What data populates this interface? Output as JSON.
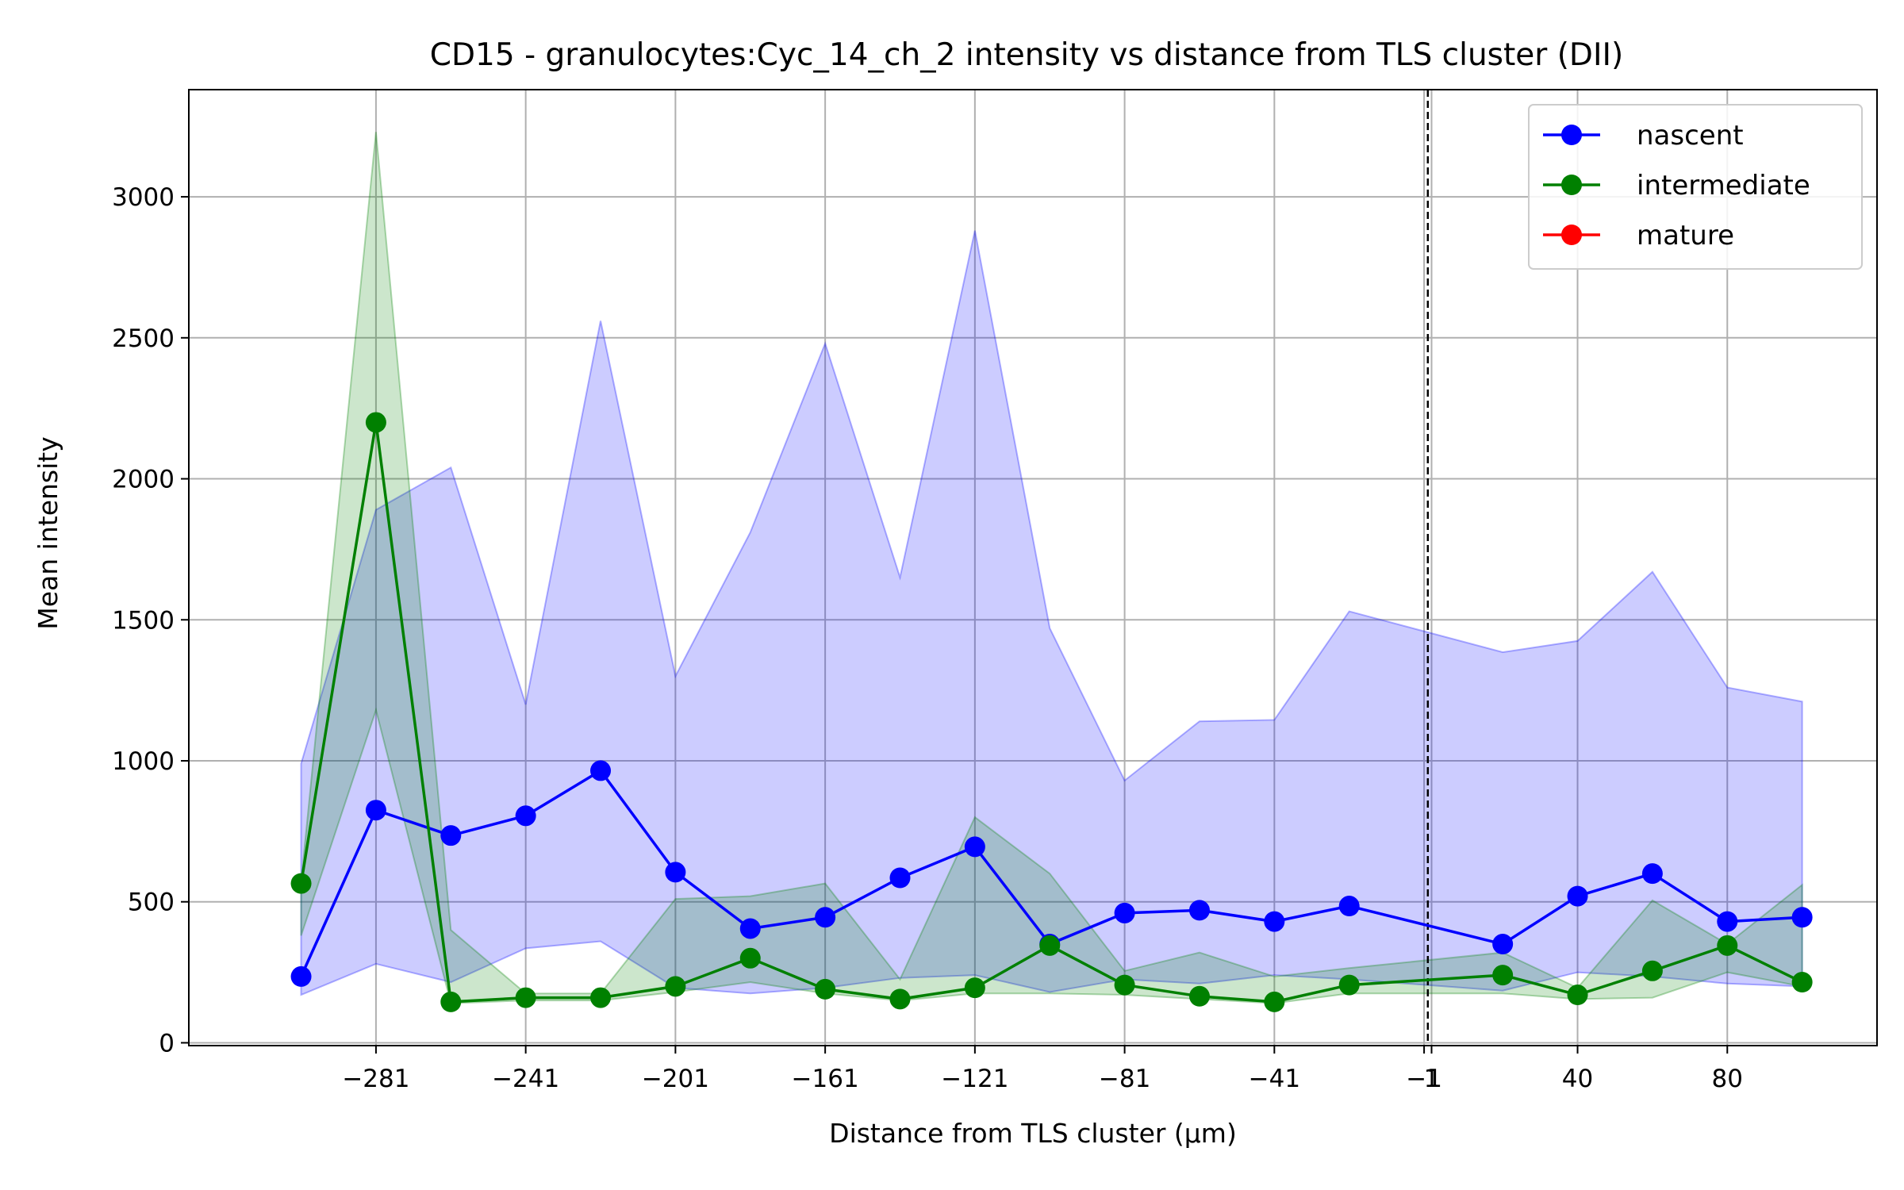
{
  "chart_data": {
    "type": "line",
    "title": "CD15 - granulocytes:Cyc_14_ch_2 intensity vs distance from TLS cluster (DII)",
    "xlabel": "Distance from TLS cluster (µm)",
    "ylabel": "Mean intensity",
    "xlim": [
      -331,
      120
    ],
    "ylim": [
      -10,
      3380
    ],
    "x_ticks": [
      -281,
      -241,
      -201,
      -161,
      -121,
      -81,
      -41,
      -1,
      1,
      40,
      80
    ],
    "x_tick_labels": [
      "−281",
      "−241",
      "−201",
      "−161",
      "−121",
      "−81",
      "−41",
      "−1",
      "1",
      "40",
      "80"
    ],
    "y_ticks": [
      0,
      500,
      1000,
      1500,
      2000,
      2500,
      3000
    ],
    "y_tick_labels": [
      "0",
      "500",
      "1000",
      "1500",
      "2000",
      "2500",
      "3000"
    ],
    "grid": true,
    "legend_position": "top-right",
    "reference_line_x": 0,
    "series": [
      {
        "name": "nascent",
        "color": "#0000ff",
        "band_color": "#0000ff",
        "band_opacity": 0.2,
        "points": [
          {
            "x": -301,
            "y": 235,
            "lo": 170,
            "hi": 990
          },
          {
            "x": -281,
            "y": 825,
            "lo": 280,
            "hi": 1890
          },
          {
            "x": -261,
            "y": 735,
            "lo": 215,
            "hi": 2040
          },
          {
            "x": -241,
            "y": 805,
            "lo": 335,
            "hi": 1200
          },
          {
            "x": -221,
            "y": 965,
            "lo": 360,
            "hi": 2560
          },
          {
            "x": -201,
            "y": 605,
            "lo": 195,
            "hi": 1300
          },
          {
            "x": -181,
            "y": 405,
            "lo": 175,
            "hi": 1810
          },
          {
            "x": -161,
            "y": 445,
            "lo": 195,
            "hi": 2480
          },
          {
            "x": -141,
            "y": 585,
            "lo": 230,
            "hi": 1650
          },
          {
            "x": -121,
            "y": 695,
            "lo": 240,
            "hi": 2880
          },
          {
            "x": -101,
            "y": 350,
            "lo": 180,
            "hi": 1470
          },
          {
            "x": -81,
            "y": 460,
            "lo": 225,
            "hi": 930
          },
          {
            "x": -61,
            "y": 470,
            "lo": 210,
            "hi": 1140
          },
          {
            "x": -41,
            "y": 430,
            "lo": 240,
            "hi": 1145
          },
          {
            "x": -21,
            "y": 485,
            "lo": 225,
            "hi": 1530
          },
          {
            "x": 20,
            "y": 350,
            "lo": 185,
            "hi": 1385
          },
          {
            "x": 40,
            "y": 520,
            "lo": 250,
            "hi": 1425
          },
          {
            "x": 60,
            "y": 600,
            "lo": 235,
            "hi": 1670
          },
          {
            "x": 80,
            "y": 430,
            "lo": 210,
            "hi": 1260
          },
          {
            "x": 100,
            "y": 445,
            "lo": 200,
            "hi": 1210
          }
        ]
      },
      {
        "name": "intermediate",
        "color": "#008000",
        "band_color": "#008000",
        "band_opacity": 0.2,
        "points": [
          {
            "x": -301,
            "y": 565,
            "lo": 380,
            "hi": 570
          },
          {
            "x": -281,
            "y": 2200,
            "lo": 1180,
            "hi": 3230
          },
          {
            "x": -261,
            "y": 145,
            "lo": 140,
            "hi": 400
          },
          {
            "x": -241,
            "y": 160,
            "lo": 150,
            "hi": 175
          },
          {
            "x": -221,
            "y": 160,
            "lo": 150,
            "hi": 175
          },
          {
            "x": -201,
            "y": 200,
            "lo": 180,
            "hi": 510
          },
          {
            "x": -181,
            "y": 300,
            "lo": 215,
            "hi": 520
          },
          {
            "x": -161,
            "y": 190,
            "lo": 175,
            "hi": 565
          },
          {
            "x": -141,
            "y": 155,
            "lo": 150,
            "hi": 225
          },
          {
            "x": -121,
            "y": 195,
            "lo": 175,
            "hi": 800
          },
          {
            "x": -101,
            "y": 345,
            "lo": 175,
            "hi": 600
          },
          {
            "x": -81,
            "y": 205,
            "lo": 170,
            "hi": 255
          },
          {
            "x": -61,
            "y": 165,
            "lo": 155,
            "hi": 320
          },
          {
            "x": -41,
            "y": 145,
            "lo": 140,
            "hi": 235
          },
          {
            "x": -21,
            "y": 205,
            "lo": 175,
            "hi": 265
          },
          {
            "x": 20,
            "y": 240,
            "lo": 175,
            "hi": 320
          },
          {
            "x": 40,
            "y": 170,
            "lo": 155,
            "hi": 195
          },
          {
            "x": 60,
            "y": 255,
            "lo": 160,
            "hi": 505
          },
          {
            "x": 80,
            "y": 345,
            "lo": 250,
            "hi": 350
          },
          {
            "x": 100,
            "y": 215,
            "lo": 200,
            "hi": 560
          }
        ]
      },
      {
        "name": "mature",
        "color": "#ff0000",
        "band_color": "#ff0000",
        "band_opacity": 0.2,
        "points": []
      }
    ]
  }
}
